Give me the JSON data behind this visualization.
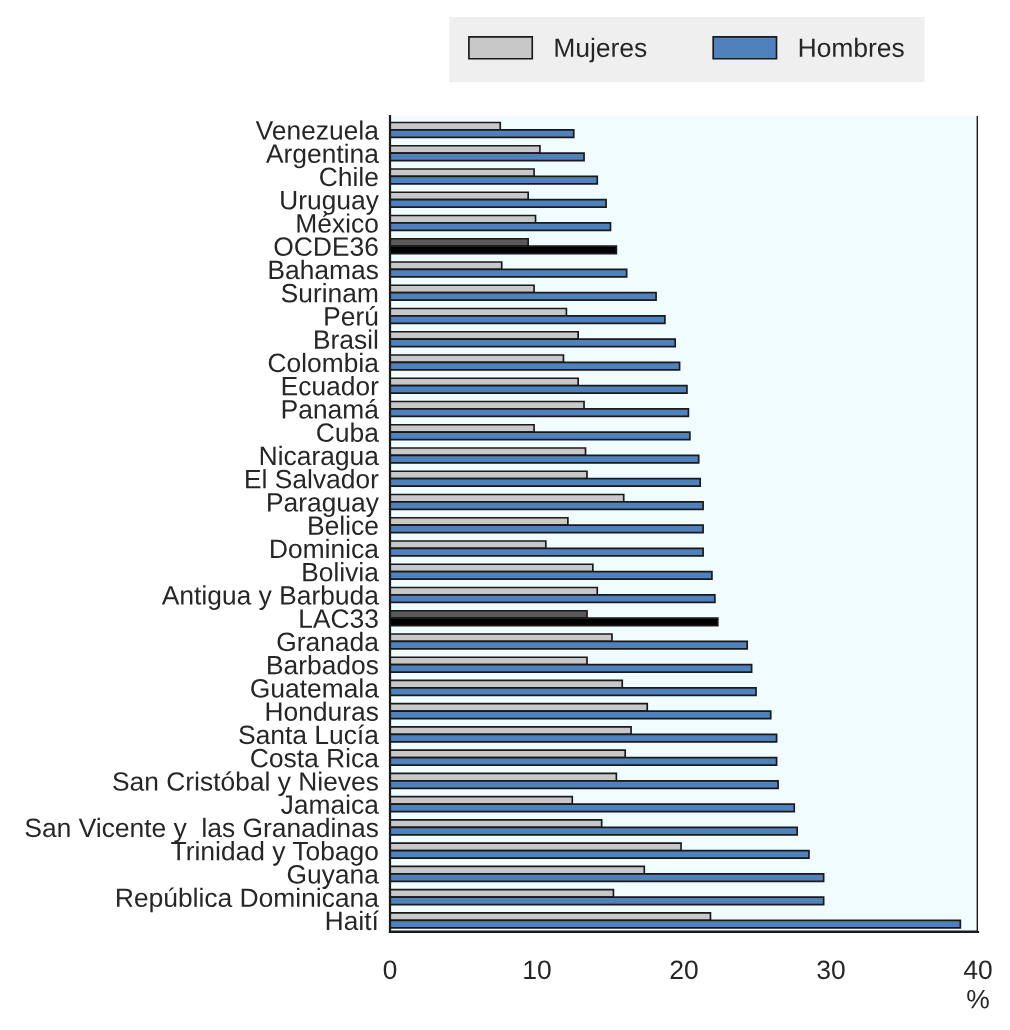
{
  "chart_data": {
    "type": "bar",
    "orientation": "horizontal",
    "xlabel": "%",
    "categories": [
      "Venezuela",
      "Argentina",
      "Chile",
      "Uruguay",
      "México",
      "OCDE36",
      "Bahamas",
      "Surinam",
      "Perú",
      "Brasil",
      "Colombia",
      "Ecuador",
      "Panamá",
      "Cuba",
      "Nicaragua",
      "El Salvador",
      "Paraguay",
      "Belice",
      "Dominica",
      "Bolivia",
      "Antigua y Barbuda",
      "LAC33",
      "Granada",
      "Barbados",
      "Guatemala",
      "Honduras",
      "Santa Lucía",
      "Costa Rica",
      "San Cristóbal y Nieves",
      "Jamaica",
      "San Vicente y  las Granadinas",
      "Trinidad y Tobago",
      "Guyana",
      "República Dominicana",
      "Haití"
    ],
    "series": [
      {
        "name": "Mujeres",
        "color": "#c8c8c8",
        "colors": [
          "#c8c8c8",
          "#c8c8c8",
          "#c8c8c8",
          "#c8c8c8",
          "#c8c8c8",
          "#595959",
          "#c8c8c8",
          "#c8c8c8",
          "#c8c8c8",
          "#c8c8c8",
          "#c8c8c8",
          "#c8c8c8",
          "#c8c8c8",
          "#c8c8c8",
          "#c8c8c8",
          "#c8c8c8",
          "#c8c8c8",
          "#c8c8c8",
          "#c8c8c8",
          "#c8c8c8",
          "#c8c8c8",
          "#595959",
          "#c8c8c8",
          "#c8c8c8",
          "#c8c8c8",
          "#c8c8c8",
          "#c8c8c8",
          "#c8c8c8",
          "#c8c8c8",
          "#c8c8c8",
          "#c8c8c8",
          "#c8c8c8",
          "#c8c8c8",
          "#c8c8c8",
          "#c8c8c8"
        ],
        "values": [
          7.5,
          10.2,
          9.8,
          9.4,
          9.9,
          9.4,
          7.6,
          9.8,
          12.0,
          12.8,
          11.8,
          12.8,
          13.2,
          9.8,
          13.3,
          13.4,
          15.9,
          12.1,
          10.6,
          13.8,
          14.1,
          13.4,
          15.1,
          13.4,
          15.8,
          17.5,
          16.4,
          16.0,
          15.4,
          12.4,
          14.4,
          19.8,
          17.3,
          15.2,
          21.8
        ]
      },
      {
        "name": "Hombres",
        "color": "#4f81bd",
        "colors": [
          "#4f81bd",
          "#4f81bd",
          "#4f81bd",
          "#4f81bd",
          "#4f81bd",
          "#000000",
          "#4f81bd",
          "#4f81bd",
          "#4f81bd",
          "#4f81bd",
          "#4f81bd",
          "#4f81bd",
          "#4f81bd",
          "#4f81bd",
          "#4f81bd",
          "#4f81bd",
          "#4f81bd",
          "#4f81bd",
          "#4f81bd",
          "#4f81bd",
          "#4f81bd",
          "#000000",
          "#4f81bd",
          "#4f81bd",
          "#4f81bd",
          "#4f81bd",
          "#4f81bd",
          "#4f81bd",
          "#4f81bd",
          "#4f81bd",
          "#4f81bd",
          "#4f81bd",
          "#4f81bd",
          "#4f81bd",
          "#4f81bd"
        ],
        "values": [
          12.5,
          13.2,
          14.1,
          14.7,
          15.0,
          15.4,
          16.1,
          18.1,
          18.7,
          19.4,
          19.7,
          20.2,
          20.3,
          20.4,
          21.0,
          21.1,
          21.3,
          21.3,
          21.3,
          21.9,
          22.1,
          22.3,
          24.3,
          24.6,
          24.9,
          25.9,
          26.3,
          26.3,
          26.4,
          27.5,
          27.7,
          28.5,
          29.5,
          29.5,
          38.8
        ]
      }
    ],
    "xlim": [
      0,
      40
    ],
    "xticks": [
      0,
      10,
      20,
      30,
      40
    ],
    "grid": false,
    "legend": "top"
  }
}
